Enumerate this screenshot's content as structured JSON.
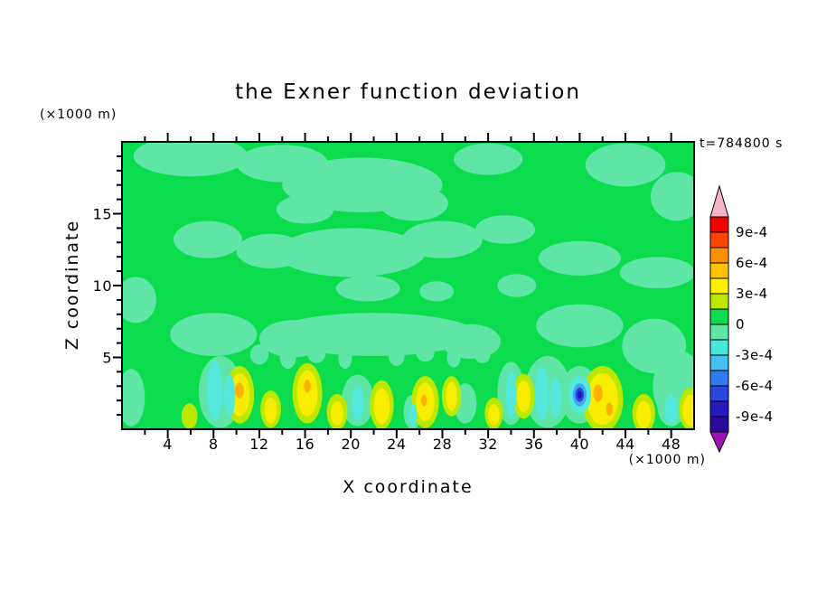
{
  "title": "the Exner function deviation",
  "timestamp": "t=784800 s",
  "axes": {
    "x_label": "X coordinate",
    "x_unit": "(×1000 m)",
    "y_label": "Z coordinate",
    "y_unit": "(×1000 m)",
    "x_ticks": [
      4,
      8,
      12,
      16,
      20,
      24,
      28,
      32,
      36,
      40,
      44,
      48
    ],
    "y_ticks": [
      5,
      10,
      15
    ]
  },
  "colorbar": {
    "labels": [
      "9e-4",
      "6e-4",
      "3e-4",
      "0",
      "-3e-4",
      "-6e-4",
      "-9e-4"
    ],
    "segment_colors": [
      "#f20000",
      "#ff4600",
      "#ff9000",
      "#ffc400",
      "#fff000",
      "#bce800",
      "#0bdc4e",
      "#5fe6a7",
      "#46e8da",
      "#46c0f0",
      "#2e7cee",
      "#2a48e0",
      "#2818c0",
      "#2a0a9e"
    ],
    "top_arrow_color": "#f2b6c6",
    "bottom_arrow_color": "#9c14b4"
  },
  "chart_data": {
    "type": "contour",
    "title": "the Exner function deviation",
    "xlabel": "X coordinate (×1000 m)",
    "ylabel": "Z coordinate (×1000 m)",
    "x_range": [
      0,
      50
    ],
    "z_range": [
      0,
      20
    ],
    "time_s": 784800,
    "contour_interval": 0.00015,
    "levels_labeled": [
      0.0009,
      0.0006,
      0.0003,
      0,
      -0.0003,
      -0.0006,
      -0.0009
    ],
    "background_band": "0 to 1.5e-4 (green)",
    "palette": {
      "green": "#0bdc4e",
      "seafoam": "#5fe6a7",
      "cyan": "#55e8dd",
      "sky": "#3fa8f0",
      "blue": "#2a48e0",
      "darkblue": "#2418b8",
      "yellowgreen": "#bce800",
      "yellow": "#f8ec00",
      "orange": "#ffb000"
    },
    "features_format": [
      "x_km",
      "z_km",
      "rx_km",
      "rz_km",
      "color"
    ],
    "features": [
      [
        6,
        19,
        5,
        1.4,
        "seafoam"
      ],
      [
        14,
        18.5,
        4,
        1.3,
        "seafoam"
      ],
      [
        21,
        17,
        7,
        1.9,
        "seafoam"
      ],
      [
        25.5,
        15.7,
        3,
        1.2,
        "seafoam"
      ],
      [
        16,
        15.3,
        2.5,
        1.0,
        "seafoam"
      ],
      [
        32,
        18.8,
        3,
        1.1,
        "seafoam"
      ],
      [
        44,
        18.4,
        3.5,
        1.5,
        "seafoam"
      ],
      [
        48.5,
        16.2,
        2.3,
        1.7,
        "seafoam"
      ],
      [
        7.5,
        13.2,
        3,
        1.3,
        "seafoam"
      ],
      [
        13,
        12.4,
        3,
        1.2,
        "seafoam"
      ],
      [
        20,
        12.3,
        6.5,
        1.7,
        "seafoam"
      ],
      [
        28,
        13.2,
        3.5,
        1.3,
        "seafoam"
      ],
      [
        33.5,
        13.9,
        2.6,
        1.0,
        "seafoam"
      ],
      [
        40,
        11.9,
        3.6,
        1.2,
        "seafoam"
      ],
      [
        46.8,
        10.9,
        3.3,
        1.1,
        "seafoam"
      ],
      [
        21.5,
        9.8,
        2.8,
        0.9,
        "seafoam"
      ],
      [
        27.5,
        9.6,
        1.5,
        0.7,
        "seafoam"
      ],
      [
        34.5,
        10,
        1.7,
        0.8,
        "seafoam"
      ],
      [
        1.2,
        9,
        1.8,
        1.6,
        "seafoam"
      ],
      [
        8,
        6.6,
        3.8,
        1.5,
        "seafoam"
      ],
      [
        15,
        6.3,
        3,
        1.3,
        "seafoam"
      ],
      [
        22,
        6.6,
        9,
        1.5,
        "seafoam"
      ],
      [
        30.5,
        6.1,
        2.6,
        1.2,
        "seafoam"
      ],
      [
        40,
        7.2,
        3.8,
        1.5,
        "seafoam"
      ],
      [
        46.5,
        5.8,
        2.8,
        1.9,
        "seafoam"
      ],
      [
        48.6,
        3,
        2.2,
        2.5,
        "seafoam"
      ],
      [
        12,
        5.2,
        0.8,
        0.7,
        "seafoam"
      ],
      [
        14.5,
        5.0,
        0.7,
        0.8,
        "seafoam"
      ],
      [
        17,
        5.3,
        0.8,
        0.7,
        "seafoam"
      ],
      [
        19.5,
        5.0,
        0.6,
        0.8,
        "seafoam"
      ],
      [
        24,
        5.1,
        0.7,
        0.7,
        "seafoam"
      ],
      [
        26.5,
        5.3,
        0.8,
        0.6,
        "seafoam"
      ],
      [
        29,
        5.0,
        0.6,
        0.7,
        "seafoam"
      ],
      [
        31.5,
        5.2,
        0.7,
        0.6,
        "seafoam"
      ],
      [
        0.8,
        2.2,
        1.2,
        2.0,
        "seafoam"
      ],
      [
        8.6,
        2.6,
        1.9,
        2.5,
        "seafoam"
      ],
      [
        20.6,
        2.0,
        1.4,
        1.8,
        "seafoam"
      ],
      [
        25.4,
        1.2,
        0.8,
        1.2,
        "seafoam"
      ],
      [
        30,
        1.8,
        1.0,
        1.4,
        "seafoam"
      ],
      [
        34,
        2.5,
        1.2,
        2.2,
        "seafoam"
      ],
      [
        37.2,
        2.6,
        2.0,
        2.5,
        "seafoam"
      ],
      [
        40,
        2.4,
        1.7,
        2.0,
        "seafoam"
      ],
      [
        48,
        1.6,
        1.2,
        1.4,
        "seafoam"
      ],
      [
        5.9,
        0.9,
        0.7,
        0.9,
        "yellowgreen"
      ],
      [
        10.3,
        2.4,
        1.25,
        2.0,
        "yellowgreen"
      ],
      [
        13,
        1.4,
        0.9,
        1.3,
        "yellowgreen"
      ],
      [
        16.2,
        2.5,
        1.3,
        2.1,
        "yellowgreen"
      ],
      [
        18.8,
        1.2,
        0.9,
        1.25,
        "yellowgreen"
      ],
      [
        22.7,
        1.7,
        1.05,
        1.7,
        "yellowgreen"
      ],
      [
        26.5,
        1.9,
        1.2,
        1.8,
        "yellowgreen"
      ],
      [
        28.8,
        2.3,
        0.85,
        1.4,
        "yellowgreen"
      ],
      [
        32.5,
        1.1,
        0.8,
        1.1,
        "yellowgreen"
      ],
      [
        35.1,
        2.3,
        0.95,
        1.55,
        "yellowgreen"
      ],
      [
        42,
        2.1,
        1.8,
        2.3,
        "yellowgreen"
      ],
      [
        45.6,
        1.1,
        1.0,
        1.35,
        "yellowgreen"
      ],
      [
        49.7,
        1.4,
        1.0,
        1.5,
        "yellowgreen"
      ],
      [
        10.3,
        2.4,
        0.85,
        1.5,
        "yellow"
      ],
      [
        13,
        1.3,
        0.55,
        0.9,
        "yellow"
      ],
      [
        16.2,
        2.5,
        0.9,
        1.6,
        "yellow"
      ],
      [
        18.8,
        1.1,
        0.55,
        0.85,
        "yellow"
      ],
      [
        22.7,
        1.6,
        0.7,
        1.25,
        "yellow"
      ],
      [
        26.5,
        1.9,
        0.8,
        1.35,
        "yellow"
      ],
      [
        28.8,
        2.3,
        0.5,
        1.0,
        "yellow"
      ],
      [
        32.5,
        1.0,
        0.5,
        0.75,
        "yellow"
      ],
      [
        35.1,
        2.3,
        0.6,
        1.1,
        "yellow"
      ],
      [
        42,
        2.1,
        1.35,
        1.8,
        "yellow"
      ],
      [
        45.6,
        1.0,
        0.65,
        0.95,
        "yellow"
      ],
      [
        49.7,
        1.3,
        0.7,
        1.1,
        "yellow"
      ],
      [
        10.25,
        2.7,
        0.38,
        0.55,
        "orange"
      ],
      [
        16.2,
        3.0,
        0.3,
        0.45,
        "orange"
      ],
      [
        26.4,
        2.0,
        0.25,
        0.4,
        "orange"
      ],
      [
        41.6,
        2.5,
        0.4,
        0.6,
        "orange"
      ],
      [
        42.6,
        1.4,
        0.3,
        0.45,
        "orange"
      ],
      [
        8.1,
        2.7,
        0.7,
        2.1,
        "cyan"
      ],
      [
        9.4,
        2.3,
        0.5,
        1.5,
        "cyan"
      ],
      [
        20.6,
        1.8,
        0.55,
        1.2,
        "cyan"
      ],
      [
        25.4,
        1.0,
        0.35,
        0.8,
        "cyan"
      ],
      [
        34,
        2.4,
        0.45,
        1.6,
        "cyan"
      ],
      [
        36.7,
        2.5,
        0.6,
        1.9,
        "cyan"
      ],
      [
        37.9,
        2.2,
        0.5,
        1.4,
        "cyan"
      ],
      [
        48,
        1.4,
        0.6,
        1.0,
        "cyan"
      ],
      [
        40,
        2.4,
        1.0,
        1.3,
        "cyan"
      ],
      [
        40,
        2.4,
        0.6,
        0.8,
        "sky"
      ],
      [
        40,
        2.4,
        0.38,
        0.5,
        "blue"
      ],
      [
        40,
        2.4,
        0.2,
        0.28,
        "darkblue"
      ]
    ]
  }
}
